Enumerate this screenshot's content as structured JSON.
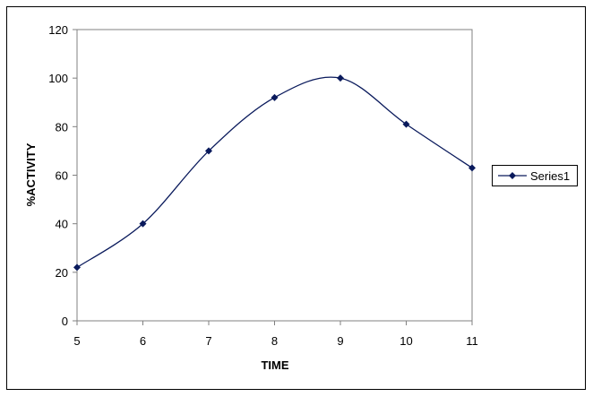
{
  "chart_data": {
    "type": "line",
    "x": [
      5,
      6,
      7,
      8,
      9,
      10,
      11
    ],
    "series": [
      {
        "name": "Series1",
        "values": [
          22,
          40,
          70,
          92,
          100,
          81,
          63
        ]
      }
    ],
    "xlabel": "TIME",
    "ylabel": "%ACTIVITY",
    "xlim": [
      5,
      11
    ],
    "ylim": [
      0,
      120
    ],
    "x_ticks": [
      "5",
      "6",
      "7",
      "8",
      "9",
      "10",
      "11"
    ],
    "y_ticks": [
      "0",
      "20",
      "40",
      "60",
      "80",
      "100",
      "120"
    ],
    "grid": false,
    "smooth": true,
    "legend": "right",
    "colors": {
      "series": "#0a1a5c",
      "axis": "#808080",
      "border": "#000000",
      "background": "#ffffff"
    }
  }
}
